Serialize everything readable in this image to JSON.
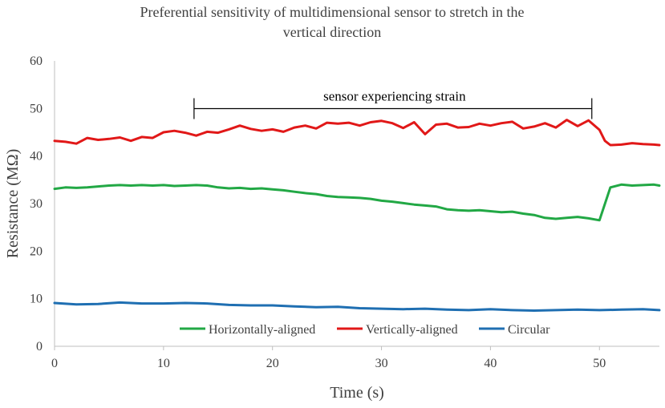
{
  "chart_data": {
    "type": "line",
    "title_lines": [
      "Preferential sensitivity of multidimensional sensor to stretch in the",
      "vertical direction"
    ],
    "xlabel": "Time (s)",
    "ylabel": "Resistance (MΩ)",
    "xlim": [
      0,
      55.5
    ],
    "ylim": [
      0,
      60
    ],
    "xticks": [
      0,
      10,
      20,
      30,
      40,
      50
    ],
    "yticks": [
      0,
      10,
      20,
      30,
      40,
      50,
      60
    ],
    "xtick_labels": [
      "0",
      "10",
      "20",
      "30",
      "40",
      "50"
    ],
    "ytick_labels": [
      "0",
      "10",
      "20",
      "30",
      "40",
      "50",
      "60"
    ],
    "grid": false,
    "legend_position": "bottom",
    "annotation": {
      "text": "sensor experiencing strain",
      "x_start": 12.8,
      "x_end": 49.3,
      "y": 52.5
    },
    "series": [
      {
        "name": "Horizontally-aligned",
        "color": "#22a845",
        "x": [
          0,
          1,
          2,
          3,
          4,
          5,
          6,
          7,
          8,
          9,
          10,
          11,
          12,
          13,
          14,
          15,
          16,
          17,
          18,
          19,
          20,
          21,
          22,
          23,
          24,
          25,
          26,
          27,
          28,
          29,
          30,
          31,
          32,
          33,
          34,
          35,
          36,
          37,
          38,
          39,
          40,
          41,
          42,
          43,
          44,
          45,
          46,
          47,
          48,
          49,
          50,
          51,
          52,
          53,
          54,
          55,
          55.5
        ],
        "y": [
          33.1,
          33.4,
          33.3,
          33.4,
          33.6,
          33.8,
          33.9,
          33.8,
          33.9,
          33.8,
          33.9,
          33.7,
          33.8,
          33.9,
          33.8,
          33.4,
          33.2,
          33.3,
          33.1,
          33.2,
          33.0,
          32.8,
          32.5,
          32.2,
          32.0,
          31.6,
          31.4,
          31.3,
          31.2,
          31.0,
          30.6,
          30.4,
          30.1,
          29.8,
          29.6,
          29.4,
          28.8,
          28.6,
          28.5,
          28.6,
          28.4,
          28.2,
          28.3,
          27.9,
          27.6,
          27.0,
          26.8,
          27.0,
          27.2,
          26.9,
          26.5,
          33.4,
          34.0,
          33.8,
          33.9,
          34.0,
          33.8
        ]
      },
      {
        "name": "Vertically-aligned",
        "color": "#e11818",
        "x": [
          0,
          1,
          2,
          3,
          4,
          5,
          6,
          7,
          8,
          9,
          10,
          11,
          12,
          13,
          14,
          15,
          16,
          17,
          18,
          19,
          20,
          21,
          22,
          23,
          24,
          25,
          26,
          27,
          28,
          29,
          30,
          31,
          32,
          33,
          34,
          35,
          36,
          37,
          38,
          39,
          40,
          41,
          42,
          43,
          44,
          45,
          46,
          47,
          48,
          49,
          50,
          50.5,
          51,
          52,
          53,
          54,
          55,
          55.5
        ],
        "y": [
          43.2,
          43.0,
          42.6,
          43.8,
          43.4,
          43.6,
          43.9,
          43.2,
          44.0,
          43.8,
          45.0,
          45.3,
          44.9,
          44.3,
          45.1,
          44.9,
          45.6,
          46.4,
          45.7,
          45.3,
          45.6,
          45.1,
          46.0,
          46.4,
          45.8,
          47.0,
          46.8,
          47.0,
          46.4,
          47.1,
          47.4,
          46.9,
          45.9,
          47.1,
          44.6,
          46.6,
          46.8,
          46.0,
          46.1,
          46.8,
          46.4,
          46.9,
          47.2,
          45.8,
          46.2,
          46.9,
          46.0,
          47.6,
          46.3,
          47.5,
          45.5,
          43.2,
          42.3,
          42.4,
          42.7,
          42.5,
          42.4,
          42.3
        ]
      },
      {
        "name": "Circular",
        "color": "#1f6fb2",
        "x": [
          0,
          2,
          4,
          6,
          8,
          10,
          12,
          14,
          16,
          18,
          20,
          22,
          24,
          26,
          28,
          30,
          32,
          34,
          36,
          38,
          40,
          42,
          44,
          46,
          48,
          50,
          52,
          54,
          55.5
        ],
        "y": [
          9.1,
          8.8,
          8.9,
          9.2,
          9.0,
          9.0,
          9.1,
          9.0,
          8.7,
          8.6,
          8.6,
          8.4,
          8.2,
          8.3,
          8.0,
          7.9,
          7.8,
          7.9,
          7.7,
          7.6,
          7.8,
          7.6,
          7.5,
          7.6,
          7.7,
          7.6,
          7.7,
          7.8,
          7.6
        ]
      }
    ]
  }
}
